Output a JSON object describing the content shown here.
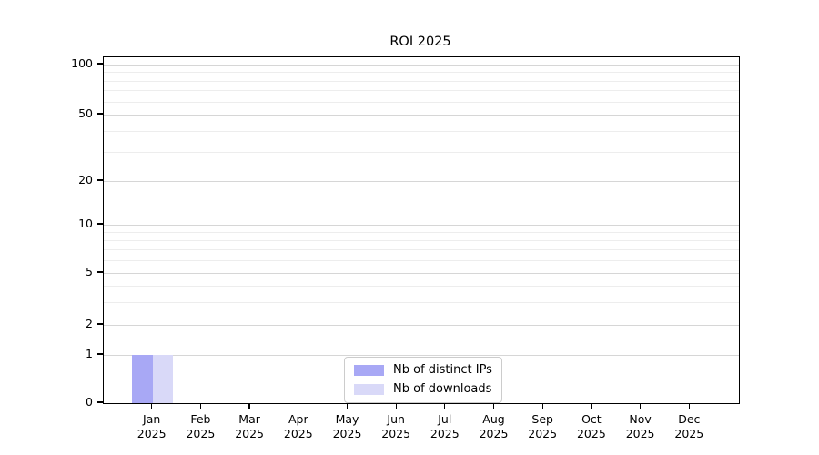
{
  "chart_data": {
    "type": "bar",
    "title": "ROI 2025",
    "categories": [
      "Jan",
      "Feb",
      "Mar",
      "Apr",
      "May",
      "Jun",
      "Jul",
      "Aug",
      "Sep",
      "Oct",
      "Nov",
      "Dec"
    ],
    "year": "2025",
    "series": [
      {
        "name": "Nb of distinct IPs",
        "color": "#a8a8f5",
        "values": [
          1,
          0,
          0,
          0,
          0,
          0,
          0,
          0,
          0,
          0,
          0,
          0
        ]
      },
      {
        "name": "Nb of downloads",
        "color": "#d9d9f8",
        "values": [
          1,
          0,
          0,
          0,
          0,
          0,
          0,
          0,
          0,
          0,
          0,
          0
        ]
      }
    ],
    "y_ticks": [
      0,
      1,
      2,
      5,
      10,
      20,
      50,
      100
    ],
    "y_minor_ticks": [
      3,
      4,
      6,
      7,
      8,
      9,
      30,
      40,
      60,
      70,
      80,
      90
    ],
    "y_scale": "symlog",
    "ylim": [
      0,
      110
    ],
    "grid": "horizontal major and minor",
    "legend_position": "inside bottom-center",
    "colors": {
      "major_grid": "#d6d6d6",
      "minor_grid": "#ededed",
      "axis": "#000000",
      "background": "#ffffff"
    }
  }
}
